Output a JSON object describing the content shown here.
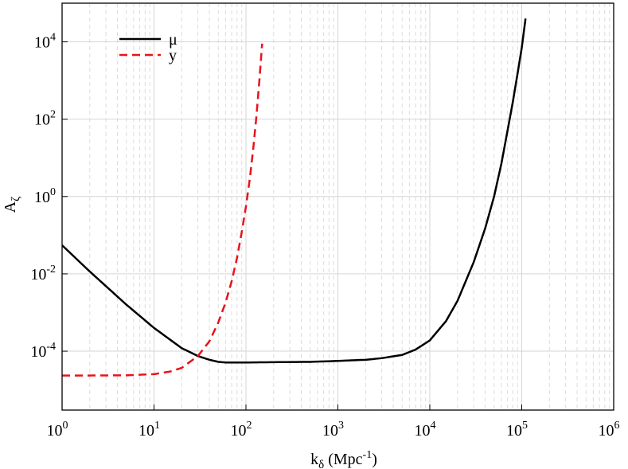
{
  "chart_data": {
    "type": "line",
    "x_scale": "log",
    "y_scale": "log",
    "xlim": [
      1,
      1000000
    ],
    "ylim": [
      3e-06,
      100000
    ],
    "xlabel": {
      "base": "k",
      "sub": "δ",
      "unit_pre": " (Mpc",
      "unit_sup": "-1",
      "unit_post": ")"
    },
    "ylabel": {
      "base": "A",
      "sub": "ζ"
    },
    "x_ticks": [
      {
        "mantissa": "10",
        "exp": "0",
        "value": 1
      },
      {
        "mantissa": "10",
        "exp": "1",
        "value": 10
      },
      {
        "mantissa": "10",
        "exp": "2",
        "value": 100
      },
      {
        "mantissa": "10",
        "exp": "3",
        "value": 1000
      },
      {
        "mantissa": "10",
        "exp": "4",
        "value": 10000
      },
      {
        "mantissa": "10",
        "exp": "5",
        "value": 100000
      },
      {
        "mantissa": "10",
        "exp": "6",
        "value": 1000000
      }
    ],
    "y_ticks": [
      {
        "mantissa": "10",
        "exp": "-4",
        "value": 0.0001
      },
      {
        "mantissa": "10",
        "exp": "-2",
        "value": 0.01
      },
      {
        "mantissa": "10",
        "exp": "0",
        "value": 1
      },
      {
        "mantissa": "10",
        "exp": "2",
        "value": 100
      },
      {
        "mantissa": "10",
        "exp": "4",
        "value": 10000
      }
    ],
    "grid": true,
    "legend_position": "top-left",
    "series": [
      {
        "name": "μ",
        "color": "#000000",
        "dash": "solid",
        "x": [
          1,
          2,
          5,
          10,
          20,
          30,
          40,
          50,
          60,
          70,
          100,
          200,
          500,
          1000,
          2000,
          3000,
          5000,
          7000,
          10000,
          15000,
          20000,
          30000,
          40000,
          50000,
          60000,
          70000,
          80000,
          90000,
          100000,
          110000
        ],
        "y": [
          0.055,
          0.0115,
          0.0016,
          0.0004,
          0.00012,
          7.5e-05,
          6e-05,
          5.3e-05,
          5.1e-05,
          5.1e-05,
          5.1e-05,
          5.2e-05,
          5.3e-05,
          5.6e-05,
          6e-05,
          6.6e-05,
          8e-05,
          0.00011,
          0.00019,
          0.0006,
          0.002,
          0.02,
          0.15,
          1.0,
          7,
          50,
          280,
          1500,
          7000,
          40000
        ]
      },
      {
        "name": "y",
        "color": "#e8131b",
        "dash": "dashed",
        "x": [
          1,
          2,
          5,
          10,
          15,
          20,
          30,
          40,
          50,
          60,
          70,
          80,
          90,
          100,
          110,
          120,
          130,
          140,
          150
        ],
        "y": [
          2.35e-05,
          2.35e-05,
          2.38e-05,
          2.55e-05,
          2.98e-05,
          3.7e-05,
          7.5e-05,
          0.00018,
          0.00055,
          0.0018,
          0.0065,
          0.026,
          0.12,
          0.55,
          2.8,
          17,
          120,
          1000,
          9000
        ]
      }
    ]
  }
}
